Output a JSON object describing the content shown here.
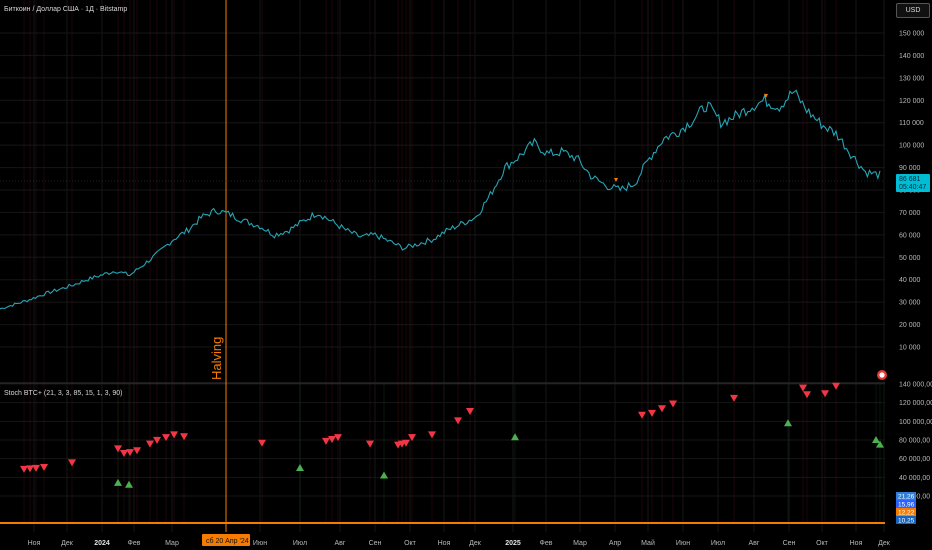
{
  "header": {
    "title": "Биткоин / Доллар США · 1Д · Bitstamp",
    "currency_button": "USD"
  },
  "event_line": {
    "label": "Halving",
    "date_label": "сб 20 Апр '24"
  },
  "price_axis": {
    "ticks": [
      "150 000",
      "140 000",
      "130 000",
      "120 000",
      "110 000",
      "100 000",
      "90 000",
      "80 000",
      "70 000",
      "60 000",
      "50 000",
      "40 000",
      "30 000",
      "20 000",
      "10 000"
    ],
    "last_price": "86 681",
    "countdown": "05:40:47"
  },
  "indicator": {
    "label": "Stoch BTC+ (21, 3, 3, 85, 15, 1, 3, 90)",
    "ticks": [
      "140 000,00",
      "120 000,00",
      "100 000,00",
      "80 000,00",
      "60 000,00",
      "40 000,00",
      "20 000,00"
    ],
    "badges": [
      {
        "value": "21,26",
        "color": "#2f7fd8"
      },
      {
        "value": "15,96",
        "color": "#2962ff"
      },
      {
        "value": "12,22",
        "color": "#f57c00"
      },
      {
        "value": "10,25",
        "color": "#1565c0"
      }
    ]
  },
  "time_axis": {
    "labels": [
      {
        "text": "Ноя",
        "bold": false
      },
      {
        "text": "Дек",
        "bold": false
      },
      {
        "text": "2024",
        "bold": true
      },
      {
        "text": "Фев",
        "bold": false
      },
      {
        "text": "Мар",
        "bold": false
      },
      {
        "text": "Июн",
        "bold": false
      },
      {
        "text": "Июл",
        "bold": false
      },
      {
        "text": "Авг",
        "bold": false
      },
      {
        "text": "Сен",
        "bold": false
      },
      {
        "text": "Окт",
        "bold": false
      },
      {
        "text": "Ноя",
        "bold": false
      },
      {
        "text": "Дек",
        "bold": false
      },
      {
        "text": "2025",
        "bold": true
      },
      {
        "text": "Фев",
        "bold": false
      },
      {
        "text": "Мар",
        "bold": false
      },
      {
        "text": "Апр",
        "bold": false
      },
      {
        "text": "Май",
        "bold": false
      },
      {
        "text": "Июн",
        "bold": false
      },
      {
        "text": "Июл",
        "bold": false
      },
      {
        "text": "Авг",
        "bold": false
      },
      {
        "text": "Сен",
        "bold": false
      },
      {
        "text": "Окт",
        "bold": false
      },
      {
        "text": "Ноя",
        "bold": false
      },
      {
        "text": "Дек",
        "bold": false
      }
    ]
  },
  "colors": {
    "price_line": "#26a5b5",
    "sell_signal": "#f23645",
    "buy_signal": "#4caf50",
    "halving": "#f57c00",
    "price_badge": "#00bcd4"
  },
  "chart_data": {
    "type": "line",
    "price_series_usd": [
      27000,
      29000,
      31000,
      33500,
      35500,
      37500,
      40000,
      42000,
      44000,
      42000,
      47000,
      52000,
      58000,
      62000,
      68000,
      71000,
      69000,
      66000,
      64000,
      60000,
      62000,
      66000,
      70000,
      66000,
      62000,
      59000,
      60000,
      57000,
      54000,
      56000,
      58000,
      62000,
      65000,
      68000,
      78000,
      90000,
      95000,
      101000,
      96000,
      97000,
      94000,
      86000,
      82000,
      80000,
      83000,
      94000,
      103000,
      106000,
      111000,
      118000,
      110000,
      113000,
      117000,
      120000,
      117000,
      124000,
      115000,
      109000,
      105000,
      96000,
      88000,
      86681
    ],
    "sell_signals_osc": [
      48000,
      48500,
      49000,
      50000,
      55000,
      70000,
      65000,
      66000,
      68000,
      75000,
      79000,
      82000,
      85000,
      83000,
      76000,
      78000,
      80000,
      82000,
      75000,
      74000,
      75000,
      76000,
      82000,
      85000,
      100000,
      110000,
      106000,
      108000,
      113000,
      118000,
      124000,
      135000,
      128000,
      129000,
      137000
    ],
    "buy_signals_osc": [
      34000,
      32000,
      50000,
      42000,
      83000,
      98000,
      80000,
      75000
    ]
  }
}
